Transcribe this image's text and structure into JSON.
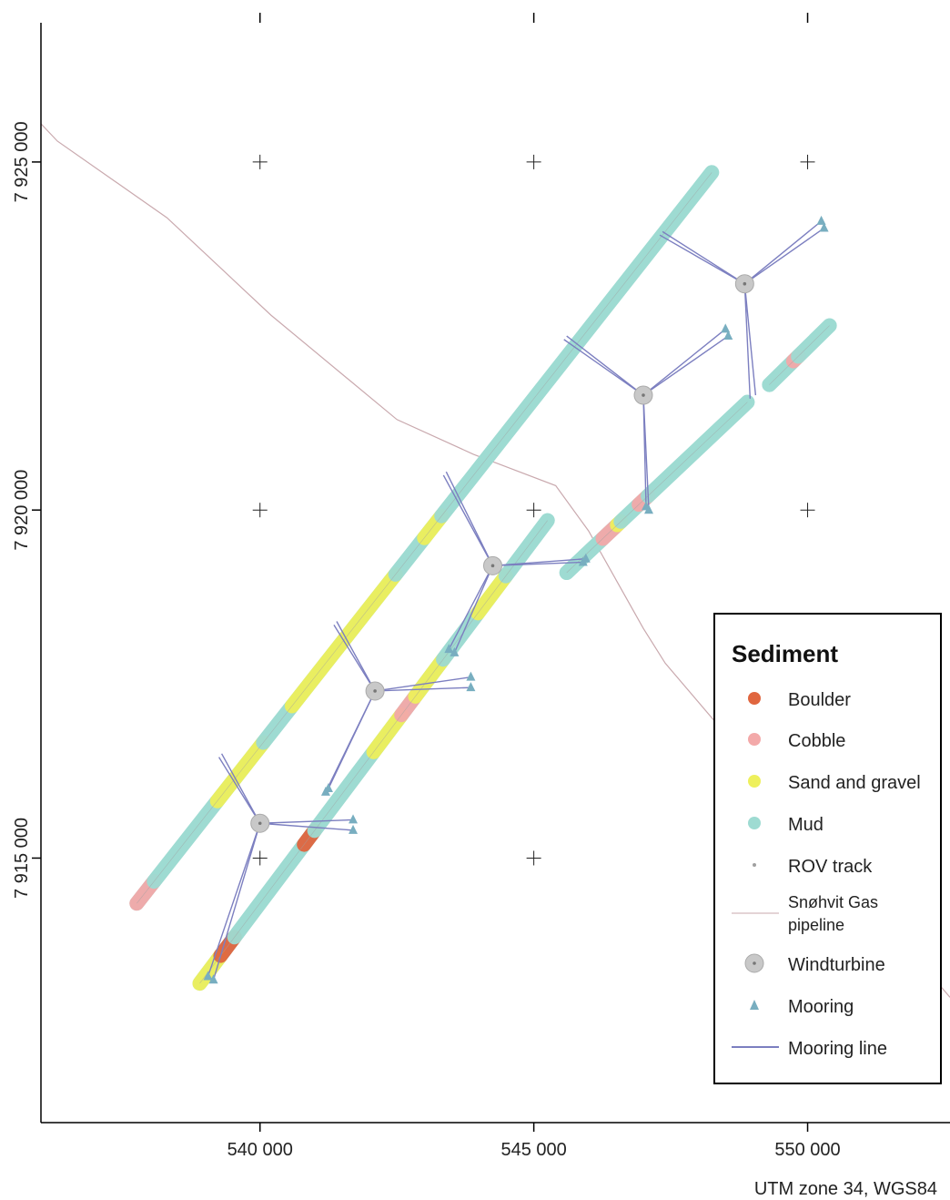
{
  "map": {
    "crs_note": "UTM zone 34, WGS84",
    "x_ticks": [
      {
        "value": 540000,
        "label": "540 000"
      },
      {
        "value": 545000,
        "label": "545 000"
      },
      {
        "value": 550000,
        "label": "550 000"
      }
    ],
    "y_ticks": [
      {
        "value": 7915000,
        "label": "7 915 000"
      },
      {
        "value": 7920000,
        "label": "7 920 000"
      },
      {
        "value": 7925000,
        "label": "7 925 000"
      }
    ],
    "x_range": [
      536000,
      552600
    ],
    "y_range": [
      7911200,
      7927000
    ]
  },
  "colors": {
    "boulder": "#e0663f",
    "cobble": "#f3a9a9",
    "sand": "#eef05c",
    "mud": "#9edbd2",
    "rov": "#a0a0a0",
    "pipeline": "#c9a9ae",
    "turbine": "#c8c8c8",
    "mooring": "#78aec0",
    "mooring_line": "#7c7fc0"
  },
  "legend": {
    "title": "Sediment",
    "items": [
      {
        "key": "boulder",
        "label": "Boulder"
      },
      {
        "key": "cobble",
        "label": "Cobble"
      },
      {
        "key": "sand",
        "label": "Sand and gravel"
      },
      {
        "key": "mud",
        "label": "Mud"
      },
      {
        "key": "rov",
        "label": "ROV track"
      },
      {
        "key": "pipeline",
        "label_line1": "Snøhvit Gas",
        "label_line2": "pipeline"
      },
      {
        "key": "turbine",
        "label": "Windturbine"
      },
      {
        "key": "mooring",
        "label": "Mooring"
      },
      {
        "key": "mooring_line",
        "label": "Mooring line"
      }
    ]
  },
  "pipeline": [
    [
      536000,
      7925550
    ],
    [
      536300,
      7925300
    ],
    [
      538300,
      7924200
    ],
    [
      540200,
      7922800
    ],
    [
      542500,
      7921300
    ],
    [
      543900,
      7920800
    ],
    [
      545400,
      7920350
    ],
    [
      546000,
      7919700
    ],
    [
      546500,
      7919000
    ],
    [
      547000,
      7918300
    ],
    [
      547400,
      7917800
    ],
    [
      552600,
      7913000
    ]
  ],
  "transects": [
    {
      "from": [
        537750,
        7914350
      ],
      "to": [
        548250,
        7924850
      ]
    },
    {
      "from": [
        538900,
        7913200
      ],
      "to": [
        545250,
        7919850
      ]
    },
    {
      "from": [
        545600,
        7919100
      ],
      "to": [
        548900,
        7921550
      ]
    },
    {
      "from": [
        549300,
        7921800
      ],
      "to": [
        550400,
        7922650
      ]
    }
  ],
  "turbines": [
    {
      "x": 540000,
      "y": 7915500
    },
    {
      "x": 542100,
      "y": 7917400
    },
    {
      "x": 544250,
      "y": 7919200
    },
    {
      "x": 547000,
      "y": 7921650
    },
    {
      "x": 548850,
      "y": 7923250
    }
  ],
  "moorings": [
    {
      "x": 539150,
      "y": 7913250
    },
    {
      "x": 539050,
      "y": 7913300
    },
    {
      "x": 541700,
      "y": 7915550
    },
    {
      "x": 541700,
      "y": 7915400
    },
    {
      "x": 541250,
      "y": 7916000
    },
    {
      "x": 541200,
      "y": 7915950
    },
    {
      "x": 543450,
      "y": 7918000
    },
    {
      "x": 543550,
      "y": 7917950
    },
    {
      "x": 543850,
      "y": 7917600
    },
    {
      "x": 543850,
      "y": 7917450
    },
    {
      "x": 545950,
      "y": 7919300
    },
    {
      "x": 545900,
      "y": 7919250
    },
    {
      "x": 547100,
      "y": 7920000
    },
    {
      "x": 547050,
      "y": 7920050
    },
    {
      "x": 548500,
      "y": 7922600
    },
    {
      "x": 548550,
      "y": 7922500
    },
    {
      "x": 550250,
      "y": 7924150
    },
    {
      "x": 550300,
      "y": 7924050
    }
  ],
  "mooring_lines": [
    {
      "turbine": 0,
      "moorings": [
        [
          539150,
          7913250
        ],
        [
          539050,
          7913300
        ],
        [
          541700,
          7915550
        ],
        [
          541700,
          7915400
        ],
        [
          539250,
          7916450
        ],
        [
          539300,
          7916500
        ]
      ]
    },
    {
      "turbine": 1,
      "moorings": [
        [
          541250,
          7916000
        ],
        [
          541200,
          7915950
        ],
        [
          543850,
          7917600
        ],
        [
          543850,
          7917450
        ],
        [
          541400,
          7918400
        ],
        [
          541350,
          7918350
        ]
      ]
    },
    {
      "turbine": 2,
      "moorings": [
        [
          543450,
          7918000
        ],
        [
          543550,
          7917950
        ],
        [
          545950,
          7919300
        ],
        [
          545900,
          7919250
        ],
        [
          543400,
          7920550
        ],
        [
          543350,
          7920500
        ]
      ]
    },
    {
      "turbine": 3,
      "moorings": [
        [
          547100,
          7920000
        ],
        [
          547050,
          7920050
        ],
        [
          548500,
          7922600
        ],
        [
          548550,
          7922500
        ],
        [
          545600,
          7922500
        ],
        [
          545550,
          7922450
        ]
      ]
    },
    {
      "turbine": 4,
      "moorings": [
        [
          548950,
          7921600
        ],
        [
          549050,
          7921650
        ],
        [
          550250,
          7924150
        ],
        [
          550300,
          7924050
        ],
        [
          547350,
          7924000
        ],
        [
          547300,
          7923950
        ]
      ]
    }
  ],
  "sediment_segments": [
    {
      "transect": 0,
      "start": 0.0,
      "end": 0.03,
      "type": "cobble"
    },
    {
      "transect": 0,
      "start": 0.03,
      "end": 0.14,
      "type": "mud"
    },
    {
      "transect": 0,
      "start": 0.14,
      "end": 0.22,
      "type": "sand"
    },
    {
      "transect": 0,
      "start": 0.22,
      "end": 0.27,
      "type": "mud"
    },
    {
      "transect": 0,
      "start": 0.27,
      "end": 0.45,
      "type": "sand"
    },
    {
      "transect": 0,
      "start": 0.45,
      "end": 0.5,
      "type": "mud"
    },
    {
      "transect": 0,
      "start": 0.5,
      "end": 0.53,
      "type": "sand"
    },
    {
      "transect": 0,
      "start": 0.53,
      "end": 1.0,
      "type": "mud"
    },
    {
      "transect": 1,
      "start": 0.0,
      "end": 0.06,
      "type": "sand"
    },
    {
      "transect": 1,
      "start": 0.06,
      "end": 0.1,
      "type": "boulder"
    },
    {
      "transect": 1,
      "start": 0.1,
      "end": 0.3,
      "type": "mud"
    },
    {
      "transect": 1,
      "start": 0.3,
      "end": 0.33,
      "type": "boulder"
    },
    {
      "transect": 1,
      "start": 0.33,
      "end": 0.5,
      "type": "mud"
    },
    {
      "transect": 1,
      "start": 0.5,
      "end": 0.58,
      "type": "sand"
    },
    {
      "transect": 1,
      "start": 0.58,
      "end": 0.62,
      "type": "cobble"
    },
    {
      "transect": 1,
      "start": 0.62,
      "end": 0.7,
      "type": "sand"
    },
    {
      "transect": 1,
      "start": 0.7,
      "end": 0.8,
      "type": "mud"
    },
    {
      "transect": 1,
      "start": 0.8,
      "end": 0.88,
      "type": "sand"
    },
    {
      "transect": 1,
      "start": 0.88,
      "end": 1.0,
      "type": "mud"
    },
    {
      "transect": 2,
      "start": 0.0,
      "end": 0.2,
      "type": "mud"
    },
    {
      "transect": 2,
      "start": 0.2,
      "end": 0.28,
      "type": "cobble"
    },
    {
      "transect": 2,
      "start": 0.28,
      "end": 0.3,
      "type": "sand"
    },
    {
      "transect": 2,
      "start": 0.3,
      "end": 0.4,
      "type": "mud"
    },
    {
      "transect": 2,
      "start": 0.4,
      "end": 0.45,
      "type": "cobble"
    },
    {
      "transect": 2,
      "start": 0.45,
      "end": 1.0,
      "type": "mud"
    },
    {
      "transect": 3,
      "start": 0.0,
      "end": 0.4,
      "type": "mud"
    },
    {
      "transect": 3,
      "start": 0.4,
      "end": 0.48,
      "type": "cobble"
    },
    {
      "transect": 3,
      "start": 0.48,
      "end": 1.0,
      "type": "mud"
    }
  ]
}
